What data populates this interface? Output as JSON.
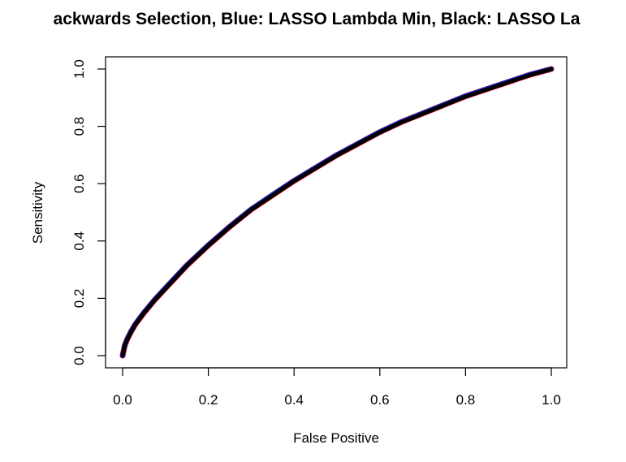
{
  "chart_data": {
    "type": "line",
    "title": "ackwards Selection, Blue: LASSO Lambda Min, Black: LASSO La",
    "xlabel": "False Positive",
    "ylabel": "Sensitivity",
    "xlim": [
      0,
      1
    ],
    "ylim": [
      0,
      1
    ],
    "x_ticks": [
      "0.0",
      "0.2",
      "0.4",
      "0.6",
      "0.8",
      "1.0"
    ],
    "y_ticks": [
      "0.0",
      "0.2",
      "0.4",
      "0.6",
      "0.8",
      "1.0"
    ],
    "grid": false,
    "legend": "none",
    "x": [
      0.0,
      0.005,
      0.01,
      0.02,
      0.03,
      0.05,
      0.075,
      0.1,
      0.15,
      0.2,
      0.25,
      0.3,
      0.35,
      0.4,
      0.45,
      0.5,
      0.55,
      0.6,
      0.65,
      0.7,
      0.75,
      0.8,
      0.85,
      0.9,
      0.95,
      1.0
    ],
    "series": [
      {
        "color": "#e0001b",
        "values": [
          0.0,
          0.035,
          0.055,
          0.085,
          0.11,
          0.15,
          0.195,
          0.235,
          0.315,
          0.385,
          0.45,
          0.51,
          0.56,
          0.61,
          0.655,
          0.7,
          0.74,
          0.78,
          0.815,
          0.845,
          0.875,
          0.905,
          0.93,
          0.955,
          0.98,
          1.0
        ]
      },
      {
        "color": "#1f1fd6",
        "values": [
          0.0,
          0.036,
          0.056,
          0.086,
          0.111,
          0.151,
          0.196,
          0.237,
          0.316,
          0.386,
          0.451,
          0.511,
          0.562,
          0.611,
          0.656,
          0.701,
          0.741,
          0.781,
          0.816,
          0.846,
          0.876,
          0.906,
          0.931,
          0.956,
          0.981,
          1.0
        ]
      },
      {
        "color": "#000000",
        "values": [
          0.0,
          0.034,
          0.054,
          0.084,
          0.109,
          0.149,
          0.194,
          0.234,
          0.314,
          0.384,
          0.449,
          0.509,
          0.559,
          0.609,
          0.654,
          0.699,
          0.739,
          0.779,
          0.814,
          0.844,
          0.874,
          0.904,
          0.929,
          0.954,
          0.979,
          1.0
        ]
      }
    ]
  }
}
